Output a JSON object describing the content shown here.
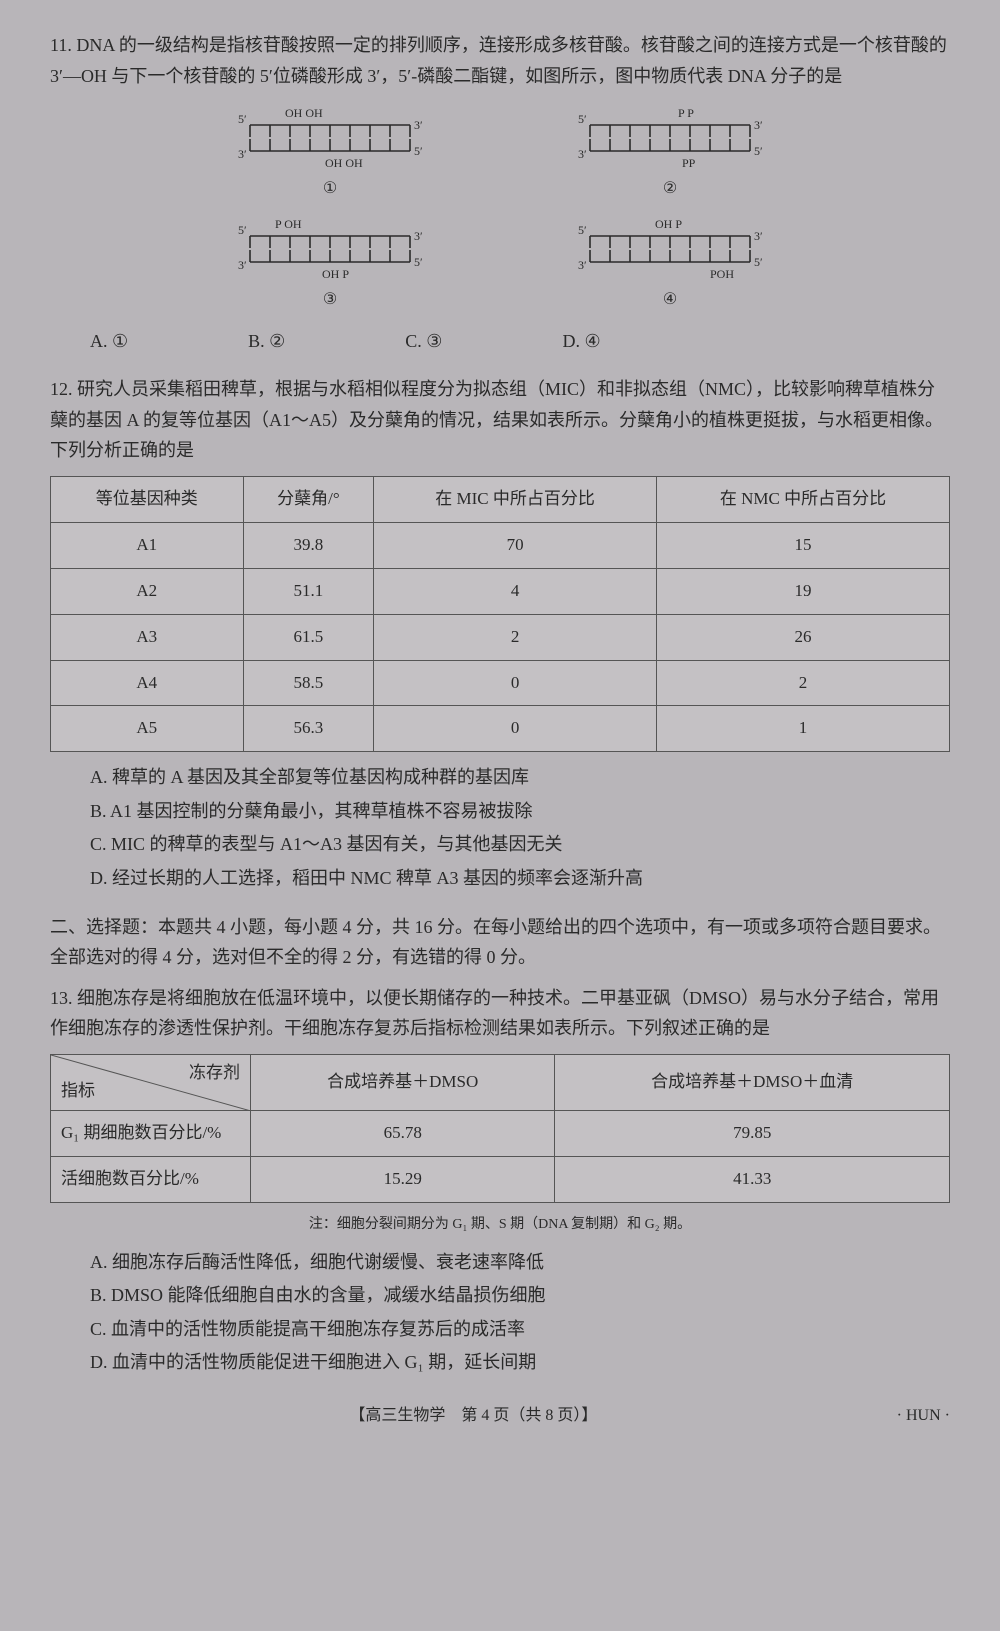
{
  "q11": {
    "num": "11.",
    "text": "DNA 的一级结构是指核苷酸按照一定的排列顺序，连接形成多核苷酸。核苷酸之间的连接方式是一个核苷酸的 3′—OH 与下一个核苷酸的 5′位磷酸形成 3′，5′-磷酸二酯键，如图所示，图中物质代表 DNA 分子的是",
    "diagrams": {
      "d1": {
        "top_labels": "OH OH",
        "bot_labels": "OH OH",
        "t5": "5′",
        "t3": "3′",
        "b3": "3′",
        "b5": "5′",
        "num": "①"
      },
      "d2": {
        "top_labels": "P P",
        "bot_labels": "PP",
        "t5": "5′",
        "t3": "3′",
        "b3": "3′",
        "b5": "5′",
        "num": "②"
      },
      "d3": {
        "top_labels": "P OH",
        "bot_labels": "OH  P",
        "t5": "5′",
        "t3": "3′",
        "b3": "3′",
        "b5": "5′",
        "num": "③"
      },
      "d4": {
        "top_labels": "OH P",
        "bot_labels": "POH",
        "t5": "5′",
        "t3": "3′",
        "b3": "3′",
        "b5": "5′",
        "num": "④"
      }
    },
    "options": {
      "a": "A. ①",
      "b": "B. ②",
      "c": "C. ③",
      "d": "D. ④"
    },
    "stroke": "#2a2a2a"
  },
  "q12": {
    "num": "12.",
    "text": "研究人员采集稻田稗草，根据与水稻相似程度分为拟态组（MIC）和非拟态组（NMC），比较影响稗草植株分蘖的基因 A 的复等位基因（A1～A5）及分蘖角的情况，结果如表所示。分蘖角小的植株更挺拔，与水稻更相像。下列分析正确的是",
    "table": {
      "headers": [
        "等位基因种类",
        "分蘖角/°",
        "在 MIC 中所占百分比",
        "在 NMC 中所占百分比"
      ],
      "rows": [
        [
          "A1",
          "39.8",
          "70",
          "15"
        ],
        [
          "A2",
          "51.1",
          "4",
          "19"
        ],
        [
          "A3",
          "61.5",
          "2",
          "26"
        ],
        [
          "A4",
          "58.5",
          "0",
          "2"
        ],
        [
          "A5",
          "56.3",
          "0",
          "1"
        ]
      ]
    },
    "choices": {
      "a": "A. 稗草的 A 基因及其全部复等位基因构成种群的基因库",
      "b": "B. A1 基因控制的分蘖角最小，其稗草植株不容易被拔除",
      "c": "C. MIC 的稗草的表型与 A1～A3 基因有关，与其他基因无关",
      "d": "D. 经过长期的人工选择，稻田中 NMC 稗草 A3 基因的频率会逐渐升高"
    }
  },
  "section2": {
    "text": "二、选择题：本题共 4 小题，每小题 4 分，共 16 分。在每小题给出的四个选项中，有一项或多项符合题目要求。全部选对的得 4 分，选对但不全的得 2 分，有选错的得 0 分。"
  },
  "q13": {
    "num": "13.",
    "text": "细胞冻存是将细胞放在低温环境中，以便长期储存的一种技术。二甲基亚砜（DMSO）易与水分子结合，常用作细胞冻存的渗透性保护剂。干细胞冻存复苏后指标检测结果如表所示。下列叙述正确的是",
    "table": {
      "diag_top": "冻存剂",
      "diag_bot": "指标",
      "col1": "合成培养基＋DMSO",
      "col2": "合成培养基＋DMSO＋血清",
      "rows": [
        [
          "G₁ 期细胞数百分比/%",
          "65.78",
          "79.85"
        ],
        [
          "活细胞数百分比/%",
          "15.29",
          "41.33"
        ]
      ]
    },
    "footnote": "注：细胞分裂间期分为 G₁ 期、S 期（DNA 复制期）和 G₂ 期。",
    "choices": {
      "a": "A. 细胞冻存后酶活性降低，细胞代谢缓慢、衰老速率降低",
      "b": "B. DMSO 能降低细胞自由水的含量，减缓水结晶损伤细胞",
      "c": "C. 血清中的活性物质能提高干细胞冻存复苏后的成活率",
      "d": "D. 血清中的活性物质能促进干细胞进入 G₁ 期，延长间期"
    }
  },
  "footer": {
    "mid": "【高三生物学　第 4 页（共 8 页）】",
    "right": "· HUN ·"
  }
}
